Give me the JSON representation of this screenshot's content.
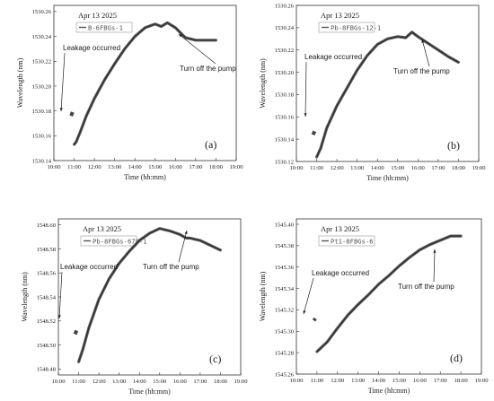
{
  "chart_data": [
    {
      "type": "line",
      "panel_label": "(a)",
      "date": "Apr 13 2025",
      "legend": [
        "B-6FBGs-1"
      ],
      "xlabel": "Time (hh:mm)",
      "ylabel": "Wavelength (nm)",
      "xticks": [
        "10:00",
        "11:00",
        "12:00",
        "13:00",
        "14:00",
        "15:00",
        "16:00",
        "17:00",
        "18:00",
        "19:00"
      ],
      "yticks": [
        "1530.14",
        "1530.16",
        "1530.18",
        "1530.20",
        "1530.22",
        "1530.24",
        "1530.26"
      ],
      "xlim": [
        10,
        19
      ],
      "ylim": [
        1530.14,
        1530.265
      ],
      "annotations": [
        {
          "text": "Leakage occurred",
          "x": 10.88,
          "y": 1530.178
        },
        {
          "text": "Turn off the pump",
          "x": 16.4,
          "y": 1530.243
        }
      ],
      "series": [
        {
          "leak": [
            [
              10.85,
              1530.176
            ],
            [
              10.92,
              1530.179
            ]
          ],
          "x": [
            11.0,
            11.1,
            11.3,
            11.6,
            12.0,
            12.5,
            13.0,
            13.5,
            14.0,
            14.5,
            15.0,
            15.3,
            15.6,
            16.0,
            16.3,
            16.5,
            17.0,
            17.5,
            18.0
          ],
          "y": [
            1530.153,
            1530.155,
            1530.163,
            1530.176,
            1530.19,
            1530.205,
            1530.218,
            1530.23,
            1530.24,
            1530.247,
            1530.25,
            1530.248,
            1530.251,
            1530.247,
            1530.242,
            1530.239,
            1530.237,
            1530.237,
            1530.237
          ]
        }
      ]
    },
    {
      "type": "line",
      "panel_label": "(b)",
      "date": "Apr 13 2025",
      "legend": [
        "Pb-8FBGs-12-1"
      ],
      "xlabel": "Time (hh:mm)",
      "ylabel": "Wavelength (nm)",
      "xticks": [
        "10:00",
        "11:00",
        "12:00",
        "13:00",
        "14:00",
        "15:00",
        "16:00",
        "17:00",
        "18:00",
        "19:00"
      ],
      "yticks": [
        "1530.12",
        "1530.14",
        "1530.16",
        "1530.18",
        "1530.20",
        "1530.22",
        "1530.24",
        "1530.26"
      ],
      "xlim": [
        10,
        19
      ],
      "ylim": [
        1530.12,
        1530.26
      ],
      "annotations": [
        {
          "text": "Leakage occurred",
          "x": 10.85,
          "y": 1530.146
        },
        {
          "text": "Turn off the pump",
          "x": 16.5,
          "y": 1530.227
        }
      ],
      "series": [
        {
          "leak": [
            [
              10.82,
              1530.144
            ],
            [
              10.9,
              1530.147
            ]
          ],
          "x": [
            11.0,
            11.2,
            11.5,
            12.0,
            12.5,
            13.0,
            13.5,
            14.0,
            14.5,
            15.0,
            15.4,
            15.7,
            16.0,
            16.5,
            17.0,
            17.5,
            18.0
          ],
          "y": [
            1530.124,
            1530.132,
            1530.15,
            1530.17,
            1530.186,
            1530.202,
            1530.215,
            1530.225,
            1530.23,
            1530.232,
            1530.231,
            1530.236,
            1530.232,
            1530.226,
            1530.22,
            1530.214,
            1530.209
          ]
        }
      ]
    },
    {
      "type": "line",
      "panel_label": "(c)",
      "date": "Apr 13 2025",
      "legend": [
        "Pb-8FBGs-678-1"
      ],
      "xlabel": "Time (hh:mm)",
      "ylabel": "Wavelength (nm)",
      "xticks": [
        "10:00",
        "11:00",
        "12:00",
        "13:00",
        "14:00",
        "15:00",
        "16:00",
        "17:00",
        "18:00",
        "19:00"
      ],
      "yticks": [
        "1548.48",
        "1548.50",
        "1548.52",
        "1548.54",
        "1548.56",
        "1548.58",
        "1548.60"
      ],
      "xlim": [
        10,
        19
      ],
      "ylim": [
        1548.475,
        1548.605
      ],
      "annotations": [
        {
          "text": "Leakage occurred",
          "x": 10.85,
          "y": 1548.511
        },
        {
          "text": "Turn off the pump",
          "x": 16.4,
          "y": 1548.588
        }
      ],
      "series": [
        {
          "leak": [
            [
              10.82,
              1548.509
            ],
            [
              10.9,
              1548.512
            ]
          ],
          "x": [
            11.0,
            11.2,
            11.5,
            12.0,
            12.5,
            13.0,
            13.5,
            14.0,
            14.5,
            15.0,
            15.5,
            16.0,
            16.3,
            16.5,
            17.0,
            17.5,
            18.0
          ],
          "y": [
            1548.486,
            1548.496,
            1548.514,
            1548.538,
            1548.555,
            1548.568,
            1548.578,
            1548.587,
            1548.593,
            1548.597,
            1548.595,
            1548.592,
            1548.589,
            1548.589,
            1548.587,
            1548.583,
            1548.579
          ]
        }
      ]
    },
    {
      "type": "line",
      "panel_label": "(d)",
      "date": "Apr 13 2025",
      "legend": [
        "Pt1-8FBGs-6"
      ],
      "xlabel": "Time (hh:mm)",
      "ylabel": "Wavelength (nm)",
      "xticks": [
        "10:00",
        "11:00",
        "12:00",
        "13:00",
        "14:00",
        "15:00",
        "16:00",
        "17:00",
        "18:00",
        "19:00"
      ],
      "yticks": [
        "1545.26",
        "1545.28",
        "1545.30",
        "1545.32",
        "1545.34",
        "1545.36",
        "1545.38",
        "1545.40"
      ],
      "xlim": [
        10,
        19
      ],
      "ylim": [
        1545.26,
        1545.405
      ],
      "annotations": [
        {
          "text": "Leakage occurred",
          "x": 10.88,
          "y": 1545.311
        },
        {
          "text": "Turn off the pump",
          "x": 16.6,
          "y": 1545.378
        }
      ],
      "series": [
        {
          "leak": [
            [
              10.85,
              1545.31
            ],
            [
              10.92,
              1545.312
            ]
          ],
          "x": [
            11.0,
            11.5,
            12.0,
            12.5,
            13.0,
            13.5,
            14.0,
            14.5,
            15.0,
            15.5,
            16.0,
            16.5,
            17.0,
            17.5,
            18.0
          ],
          "y": [
            1545.281,
            1545.29,
            1545.303,
            1545.315,
            1545.325,
            1545.334,
            1545.344,
            1545.352,
            1545.361,
            1545.369,
            1545.376,
            1545.381,
            1545.385,
            1545.389,
            1545.389
          ]
        }
      ]
    }
  ]
}
